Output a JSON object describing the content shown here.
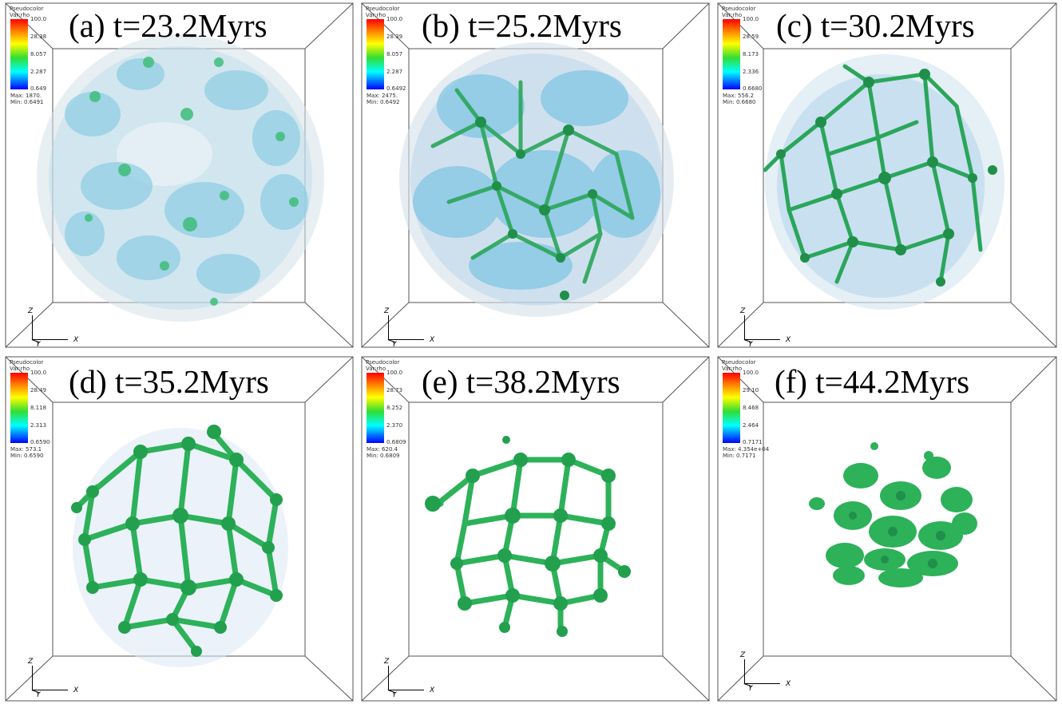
{
  "panels": [
    {
      "title": "(a) t=23.2Myrs",
      "legend": {
        "header_1": "Pseudocolor",
        "header_2": "Var:rho",
        "ticks": [
          "100.0",
          "28.38",
          "8.057",
          "2.287",
          "0.649"
        ],
        "max": "Max: 1870.",
        "min": "Min: 0.6491"
      }
    },
    {
      "title": "(b) t=25.2Myrs",
      "legend": {
        "header_1": "Pseudocolor",
        "header_2": "Var:rho",
        "ticks": [
          "100.0",
          "28.39",
          "8.057",
          "2.287",
          "0.6492"
        ],
        "max": "Max: 2475.",
        "min": "Min: 0.6492"
      }
    },
    {
      "title": "(c) t=30.2Myrs",
      "legend": {
        "header_1": "Pseudocolor",
        "header_2": "Var:rho",
        "ticks": [
          "100.0",
          "28.59",
          "8.173",
          "2.336",
          "0.6680"
        ],
        "max": "Max: 556.2",
        "min": "Min: 0.6680"
      }
    },
    {
      "title": "(d) t=35.2Myrs",
      "legend": {
        "header_1": "Pseudocolor",
        "header_2": "Var:rho",
        "ticks": [
          "100.0",
          "28.49",
          "8.118",
          "2.313",
          "0.6590"
        ],
        "max": "Max: 573.1",
        "min": "Min: 0.6590"
      }
    },
    {
      "title": "(e) t=38.2Myrs",
      "legend": {
        "header_1": "Pseudocolor",
        "header_2": "Var:rho",
        "ticks": [
          "100.0",
          "28.73",
          "8.252",
          "2.370",
          "0.6809"
        ],
        "max": "Max: 620.4",
        "min": "Min: 0.6809"
      }
    },
    {
      "title": "(f) t=44.2Myrs",
      "legend": {
        "header_1": "Pseudocolor",
        "header_2": "Var:rho",
        "ticks": [
          "100.0",
          "29.10",
          "8.468",
          "2.464",
          "0.7171"
        ],
        "max": "Max: 4.354e+04",
        "min": "Min: 0.7171"
      }
    }
  ],
  "axes": {
    "z": "Z",
    "y": "Y",
    "x": "X"
  },
  "colors": {
    "diffuse_gas": "#9ed8ec",
    "filaments": "#2fb75a",
    "frame": "#555555"
  }
}
